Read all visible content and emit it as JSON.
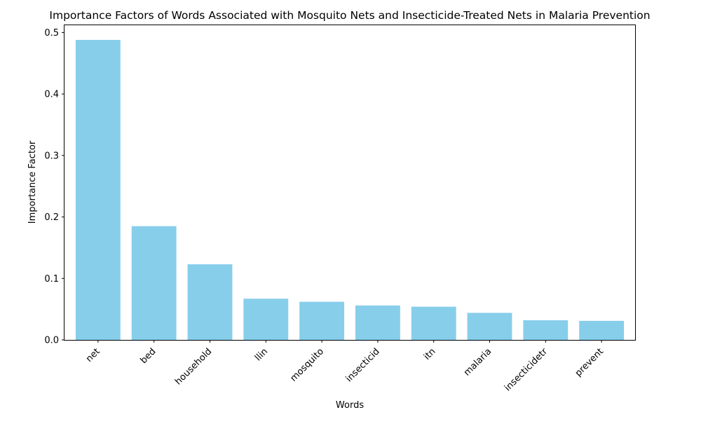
{
  "chart_data": {
    "type": "bar",
    "title": "Importance Factors of Words Associated with Mosquito Nets and Insecticide-Treated Nets in Malaria Prevention",
    "xlabel": "Words",
    "ylabel": "Importance Factor",
    "categories": [
      "net",
      "bed",
      "household",
      "llin",
      "mosquito",
      "insecticid",
      "itn",
      "malaria",
      "insecticidetr",
      "prevent"
    ],
    "values": [
      0.488,
      0.185,
      0.123,
      0.067,
      0.062,
      0.056,
      0.054,
      0.044,
      0.032,
      0.031
    ],
    "ylim": [
      0,
      0.513
    ],
    "yticks": [
      0.0,
      0.1,
      0.2,
      0.3,
      0.4,
      0.5
    ],
    "ytick_labels": [
      "0.0",
      "0.1",
      "0.2",
      "0.3",
      "0.4",
      "0.5"
    ],
    "bar_color": "#87ceeb",
    "grid": false,
    "legend": "none"
  }
}
